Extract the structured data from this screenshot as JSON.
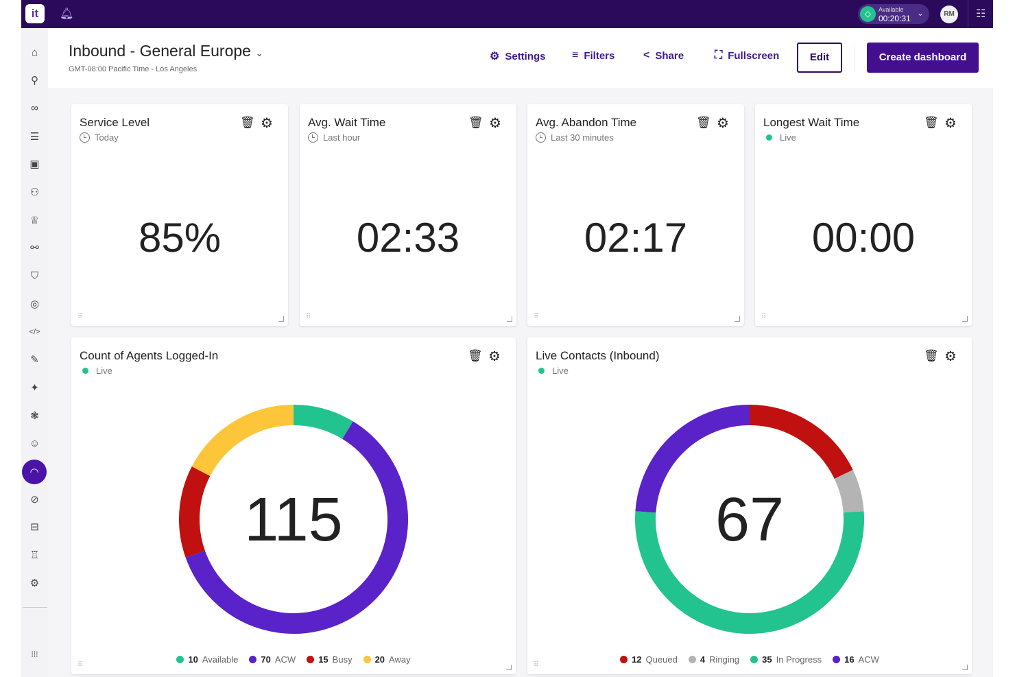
{
  "topbar": {
    "logo": "it",
    "status_label": "Available",
    "status_timer": "00:20:31",
    "avatar": "RM"
  },
  "sidebar": {
    "items": [
      {
        "icon": "home-icon",
        "glyph": "⌂"
      },
      {
        "icon": "routing-icon",
        "glyph": "⚲"
      },
      {
        "icon": "voicemail-icon",
        "glyph": "∞"
      },
      {
        "icon": "list-icon",
        "glyph": "☰"
      },
      {
        "icon": "contacts-icon",
        "glyph": "▣"
      },
      {
        "icon": "teams-icon",
        "glyph": "⚇"
      },
      {
        "icon": "trophy-icon",
        "glyph": "♕"
      },
      {
        "icon": "flow-icon",
        "glyph": "⚯"
      },
      {
        "icon": "shield-icon",
        "glyph": "⛉"
      },
      {
        "icon": "fingerprint-icon",
        "glyph": "◎"
      },
      {
        "icon": "code-icon",
        "glyph": "</>"
      },
      {
        "icon": "edit-icon",
        "glyph": "✎"
      },
      {
        "icon": "ai-icon",
        "glyph": "✦"
      },
      {
        "icon": "brain-icon",
        "glyph": "❃"
      },
      {
        "icon": "chat-icon",
        "glyph": "☺"
      },
      {
        "icon": "dashboard-icon",
        "glyph": "◠",
        "active": true
      },
      {
        "icon": "compass-icon",
        "glyph": "⊘"
      },
      {
        "icon": "briefcase-icon",
        "glyph": "⊟"
      },
      {
        "icon": "agent-icon",
        "glyph": "♖"
      },
      {
        "icon": "settings-icon",
        "glyph": "⚙"
      }
    ],
    "apps_glyph": "⁞⁞⁞"
  },
  "header": {
    "title": "Inbound - General Europe",
    "subtitle": "GMT-08:00 Pacific Time - Los Angeles",
    "settings": "Settings",
    "filters": "Filters",
    "share": "Share",
    "fullscreen": "Fullscreen",
    "edit": "Edit",
    "create": "Create dashboard"
  },
  "cards": [
    {
      "title": "Service Level",
      "sub": "Today",
      "sub_type": "clock",
      "value": "85%"
    },
    {
      "title": "Avg. Wait Time",
      "sub": "Last hour",
      "sub_type": "clock",
      "value": "02:33"
    },
    {
      "title": "Avg. Abandon Time",
      "sub": "Last 30 minutes",
      "sub_type": "clock",
      "value": "02:17"
    },
    {
      "title": "Longest Wait Time",
      "sub": "Live",
      "sub_type": "live",
      "value": "00:00"
    }
  ],
  "chart_data": [
    {
      "type": "pie",
      "title": "Count of Agents Logged-In",
      "subtitle": "Live",
      "total": "115",
      "categories": [
        "Available",
        "ACW",
        "Busy",
        "Away"
      ],
      "values": [
        10,
        70,
        15,
        20
      ],
      "colors": [
        "#22c38e",
        "#5a22c9",
        "#c01010",
        "#fcc53a"
      ]
    },
    {
      "type": "pie",
      "title": "Live Contacts (Inbound)",
      "subtitle": "Live",
      "total": "67",
      "categories": [
        "Queued",
        "Ringing",
        "In Progress",
        "ACW"
      ],
      "values": [
        12,
        4,
        35,
        16
      ],
      "colors": [
        "#c01010",
        "#b4b4b4",
        "#22c38e",
        "#5a22c9"
      ]
    }
  ]
}
